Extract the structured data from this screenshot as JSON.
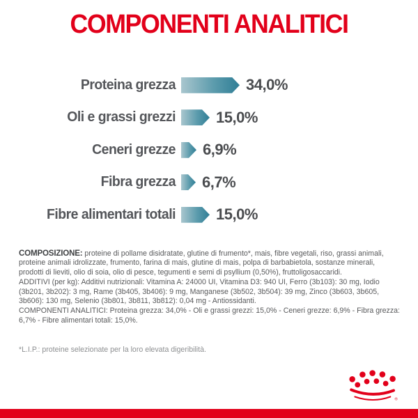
{
  "page": {
    "title": "COMPONENTI ANALITICI",
    "accent_red": "#e2001a",
    "bar_teal_dark": "#2f7e96",
    "bar_teal_light": "#a9c6ce",
    "text_gray": "#58595b"
  },
  "chart_data": {
    "type": "bar",
    "orientation": "horizontal",
    "unit": "%",
    "legend": "none",
    "grid": false,
    "categories": [
      "Proteina grezza",
      "Oli e grassi grezzi",
      "Ceneri grezze",
      "Fibra grezza",
      "Fibre alimentari totali"
    ],
    "values": [
      34.0,
      15.0,
      6.9,
      6.7,
      15.0
    ],
    "value_labels": [
      "34,0%",
      "15,0%",
      "6,9%",
      "6,7%",
      "15,0%"
    ],
    "title": "COMPONENTI ANALITICI"
  },
  "info": {
    "composition_label": "COMPOSIZIONE:",
    "composition_text": " proteine di pollame disidratate, glutine di frumento*, mais, fibre vegetali, riso, grassi animali, proteine animali idrolizzate, frumento, farina di mais, glutine di mais, polpa di barbabietola, sostanze minerali, prodotti di lieviti, olio di soia, olio di pesce, tegumenti e semi di psyllium (0,50%), fruttoligosaccaridi.",
    "additives_text": "ADDITIVI (per kg): Additivi nutrizionali: Vitamina A: 24000 UI, Vitamina D3: 940 UI, Ferro (3b103): 30 mg, Iodio (3b201, 3b202): 3 mg, Rame (3b405, 3b406): 9 mg, Manganese (3b502, 3b504): 39 mg, Zinco (3b603, 3b605, 3b606): 130 mg, Selenio (3b801, 3b811, 3b812): 0,04 mg - Antiossidanti.",
    "analytical_text": "COMPONENTI ANALITICI: Proteina grezza: 34,0% - Oli e grassi grezzi: 15,0% - Ceneri grezze: 6,9% - Fibra grezza: 6,7% - Fibre alimentari totali: 15,0%.",
    "footnote": "*L.I.P.: proteine selezionate per la loro elevata digeribilità."
  },
  "logo": {
    "name": "royal-canin-crown",
    "registered_mark": "®"
  }
}
